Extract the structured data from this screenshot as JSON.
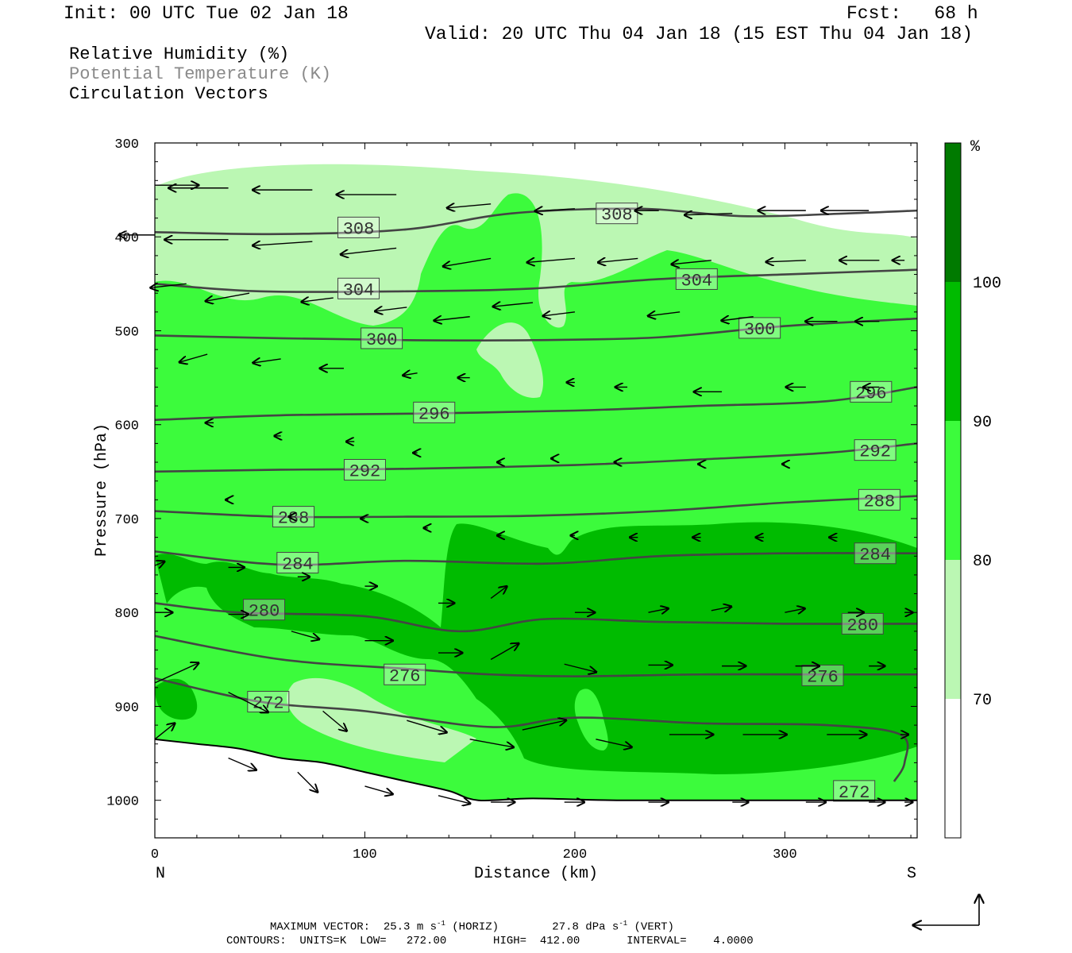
{
  "header": {
    "init": "Init: 00 UTC Tue 02 Jan 18",
    "fcst": "Fcst:   68 h",
    "valid": "Valid: 20 UTC Thu 04 Jan 18 (15 EST Thu 04 Jan 18)"
  },
  "legend": [
    "Relative Humidity (%)",
    "Potential Temperature (K)",
    "Circulation Vectors"
  ],
  "footer": {
    "max_vector": "MAXIMUM VECTOR:  25.3 m s",
    "horiz": "(HORIZ)",
    "vert_val": "27.8 dPa s",
    "vert": "(VERT)",
    "exp": "-1",
    "contours": "CONTOURS:  UNITS=K  LOW=   272.00       HIGH=  412.00       INTERVAL=    4.0000"
  },
  "colors": {
    "rh_70_80": "#bbf7b3",
    "rh_80_90": "#3cfb3c",
    "rh_90_100": "#00bb00",
    "rh_100": "#007a00",
    "contour": "#444444"
  },
  "chart_data": {
    "type": "cross-section",
    "xlabel": "Distance (km)",
    "ylabel": "Pressure (hPa)",
    "xlim": [
      0,
      363
    ],
    "ylim": [
      1040,
      300
    ],
    "x_ticks": [
      0,
      100,
      200,
      300
    ],
    "y_ticks": [
      300,
      400,
      500,
      600,
      700,
      800,
      900,
      1000
    ],
    "x_end_labels": {
      "left": "N",
      "right": "S"
    },
    "colorbar": {
      "unit": "%",
      "levels": [
        70,
        80,
        90,
        100
      ]
    },
    "theta_contours": [
      {
        "label": "308",
        "x": [
          0,
          60,
          120,
          170,
          230,
          280,
          330,
          363
        ],
        "p": [
          395,
          397,
          392,
          375,
          370,
          378,
          375,
          372
        ],
        "lx": 97,
        "lp": 390
      },
      {
        "label": "308",
        "x": [
          230
        ],
        "p": [
          375
        ],
        "lx": 220,
        "lp": 375
      },
      {
        "label": "304",
        "x": [
          0,
          50,
          120,
          180,
          240,
          300,
          363
        ],
        "p": [
          450,
          458,
          458,
          455,
          445,
          440,
          435
        ],
        "lx": 97,
        "lp": 455
      },
      {
        "label": "304",
        "x": [
          258
        ],
        "p": [
          445
        ],
        "lx": 258,
        "lp": 445
      },
      {
        "label": "300",
        "x": [
          0,
          60,
          120,
          180,
          240,
          300,
          363
        ],
        "p": [
          505,
          508,
          510,
          510,
          507,
          495,
          487
        ],
        "lx": 108,
        "lp": 508
      },
      {
        "label": "300",
        "x": [
          288
        ],
        "p": [
          497
        ],
        "lx": 288,
        "lp": 497
      },
      {
        "label": "296",
        "x": [
          0,
          60,
          130,
          200,
          260,
          320,
          363
        ],
        "p": [
          595,
          590,
          588,
          585,
          580,
          575,
          560
        ],
        "lx": 133,
        "lp": 587
      },
      {
        "label": "296",
        "x": [
          341
        ],
        "p": [
          565
        ],
        "lx": 341,
        "lp": 565
      },
      {
        "label": "292",
        "x": [
          0,
          60,
          120,
          200,
          260,
          320,
          363
        ],
        "p": [
          650,
          648,
          647,
          643,
          637,
          630,
          620
        ],
        "lx": 100,
        "lp": 648
      },
      {
        "label": "292",
        "x": [
          343
        ],
        "p": [
          627
        ],
        "lx": 343,
        "lp": 627
      },
      {
        "label": "288",
        "x": [
          0,
          60,
          120,
          180,
          240,
          300,
          363
        ],
        "p": [
          692,
          698,
          698,
          697,
          692,
          683,
          676
        ],
        "lx": 66,
        "lp": 698
      },
      {
        "label": "288",
        "x": [
          345
        ],
        "p": [
          680
        ],
        "lx": 345,
        "lp": 680
      },
      {
        "label": "284",
        "x": [
          0,
          60,
          120,
          186,
          240,
          300,
          363
        ],
        "p": [
          735,
          749,
          745,
          748,
          740,
          737,
          737
        ],
        "lx": 68,
        "lp": 747
      },
      {
        "label": "284",
        "x": [
          343
        ],
        "p": [
          737
        ],
        "lx": 343,
        "lp": 737
      },
      {
        "label": "280",
        "x": [
          0,
          40,
          100,
          145,
          186,
          240,
          300,
          363
        ],
        "p": [
          790,
          800,
          804,
          820,
          807,
          810,
          812,
          812
        ],
        "lx": 52,
        "lp": 797
      },
      {
        "label": "280",
        "x": [
          337
        ],
        "p": [
          812
        ],
        "lx": 337,
        "lp": 812
      },
      {
        "label": "276",
        "x": [
          0,
          60,
          120,
          160,
          200,
          260,
          320,
          363
        ],
        "p": [
          825,
          850,
          860,
          866,
          868,
          866,
          866,
          866
        ],
        "lx": 119,
        "lp": 866
      },
      {
        "label": "276",
        "x": [
          318
        ],
        "p": [
          867
        ],
        "lx": 318,
        "lp": 867
      },
      {
        "label": "272",
        "x": [
          0,
          50,
          100,
          160,
          200,
          260,
          320,
          355,
          357,
          352
        ],
        "p": [
          870,
          895,
          905,
          922,
          912,
          918,
          920,
          930,
          960,
          980
        ],
        "lx": 54,
        "lp": 895
      },
      {
        "label": "272",
        "x": [
          333
        ],
        "p": [
          990
        ],
        "lx": 333,
        "lp": 990
      }
    ],
    "ground": {
      "x": [
        0,
        20,
        40,
        60,
        80,
        100,
        120,
        140,
        154,
        180,
        220,
        280,
        363
      ],
      "p": [
        935,
        940,
        945,
        955,
        960,
        970,
        980,
        990,
        1000,
        998,
        1000,
        1000,
        1000
      ]
    },
    "vectors_note": "Circulation vectors: westward (N-ward) flow aloft, weak flow mid-levels, eastward (S-ward) flow below 750 hPa"
  }
}
